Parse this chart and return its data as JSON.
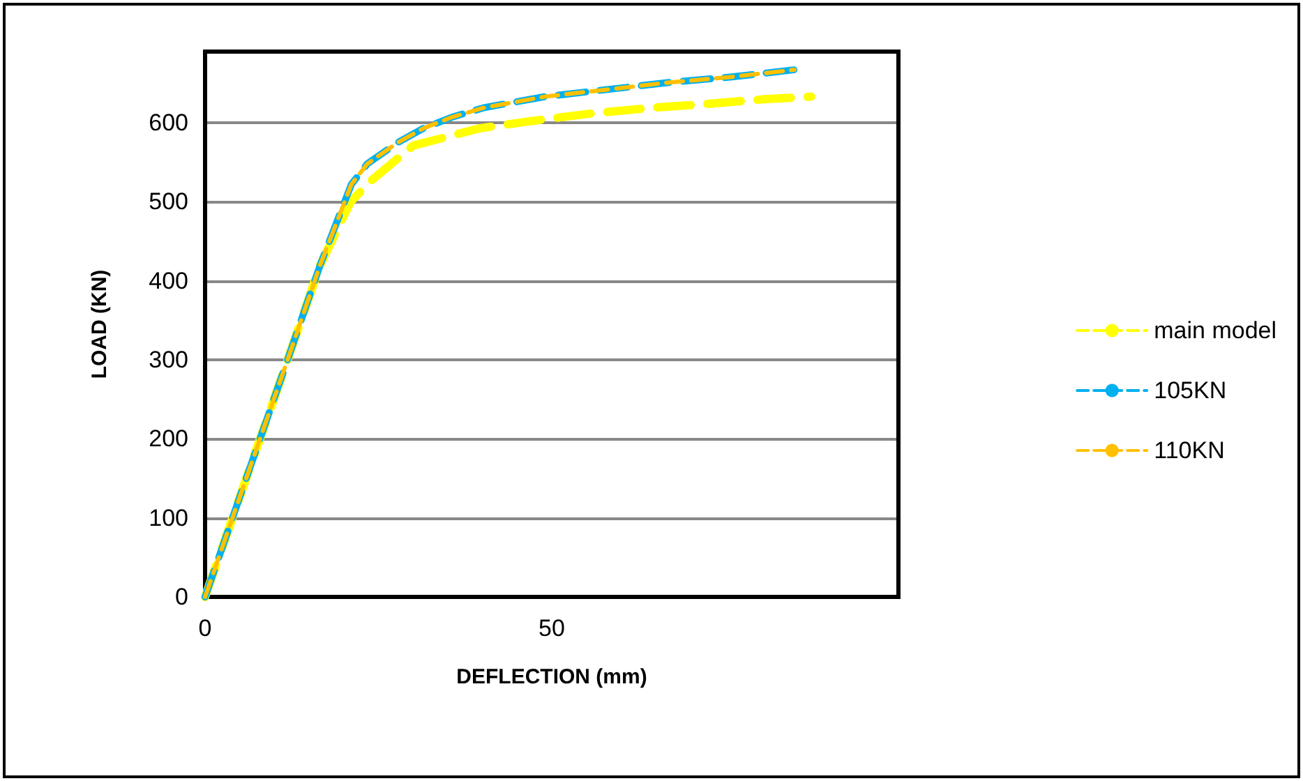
{
  "chart_data": {
    "type": "line",
    "xlabel": "DEFLECTION (mm)",
    "ylabel": "LOAD (KN)",
    "xlim": [
      0,
      100
    ],
    "xticks": [
      0,
      50
    ],
    "ylim": [
      0,
      690
    ],
    "yticks": [
      0,
      100,
      200,
      300,
      400,
      500,
      600
    ],
    "grid": "y",
    "legend": "right",
    "marker": "none",
    "line_style": "dashed",
    "series": [
      {
        "name": "main model",
        "color": "#ffff00",
        "x": [
          0,
          5.5,
          11.9,
          16.6,
          21,
          24,
          30,
          39.6,
          47.8,
          56,
          64.6,
          72.8,
          81,
          87.4
        ],
        "values": [
          0,
          139,
          300,
          420,
          500,
          527,
          571,
          593,
          603,
          612,
          619,
          624,
          630,
          633
        ]
      },
      {
        "name": "105KN",
        "color": "#00b0f0",
        "x": [
          0,
          5.5,
          11.9,
          16.6,
          21.1,
          23.4,
          27.8,
          31.5,
          35.6,
          40.2,
          49,
          58,
          67,
          76,
          85
        ],
        "values": [
          0,
          139,
          300,
          420,
          522,
          548,
          575,
          593,
          607,
          619,
          633,
          642,
          651,
          658,
          667
        ]
      },
      {
        "name": "110KN",
        "color": "#ffc000",
        "x": [
          0,
          5.5,
          11.9,
          16.6,
          21.1,
          23.4,
          27.8,
          31.5,
          35.6,
          40.2,
          49,
          58,
          67,
          76,
          85
        ],
        "values": [
          0,
          139,
          300,
          420,
          522,
          548,
          575,
          593,
          607,
          619,
          633,
          642,
          651,
          658,
          667
        ]
      }
    ]
  }
}
